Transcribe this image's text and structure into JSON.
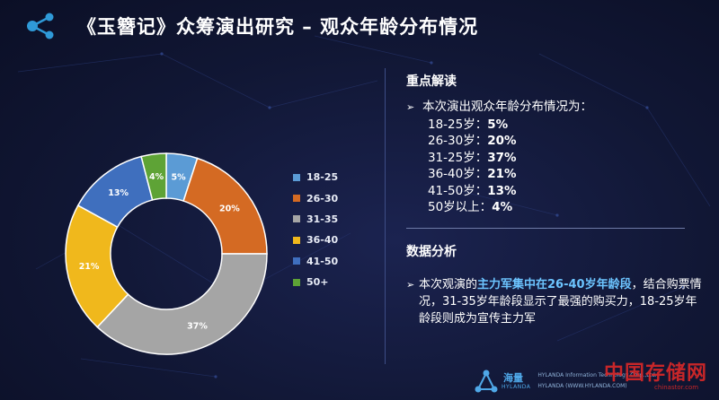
{
  "header": {
    "title": "《玉簪记》众筹演出研究 – 观众年龄分布情况"
  },
  "colors": {
    "accent": "#2f9ad8",
    "highlight": "#6cc4ff",
    "divider": "#3d4d86"
  },
  "chart_data": {
    "type": "pie",
    "variant": "donut",
    "categories": [
      "18-25",
      "26-30",
      "31-35",
      "36-40",
      "41-50",
      "50+"
    ],
    "values": [
      5,
      20,
      37,
      21,
      13,
      4
    ],
    "labels": [
      "5%",
      "20%",
      "37%",
      "21%",
      "13%",
      "4%"
    ],
    "colors": [
      "#5b9bd5",
      "#d46a23",
      "#a5a5a5",
      "#f0b81c",
      "#3f6fbe",
      "#5ea336"
    ],
    "legend_position": "right"
  },
  "summary": {
    "heading": "重点解读",
    "intro": "本次演出观众年龄分布情况为：",
    "rows": [
      {
        "label": "18-25岁：",
        "value": "5%"
      },
      {
        "label": "26-30岁：",
        "value": "20%"
      },
      {
        "label": "31-25岁：",
        "value": "37%"
      },
      {
        "label": "36-40岁：",
        "value": "21%"
      },
      {
        "label": "41-50岁：",
        "value": "13%"
      },
      {
        "label": "50岁以上：",
        "value": "4%"
      }
    ]
  },
  "analysis": {
    "heading": "数据分析",
    "text_before": "本次观演的",
    "highlight": "主力军集中在26-40岁年龄段",
    "text_after": "，结合购票情况，31-35岁年龄段显示了最强的购买力，18-25岁年龄段则成为宣传主力军"
  },
  "footer": {
    "brand_name": "海量",
    "brand_sub": "HYLANDA",
    "company": "HYLANDA Information Technology Corp.,Ltd.",
    "website": "HYLANDA (WWW.HYLANDA.COM)",
    "watermark": "中国存储网",
    "watermark_sub": "chinastor.com"
  }
}
